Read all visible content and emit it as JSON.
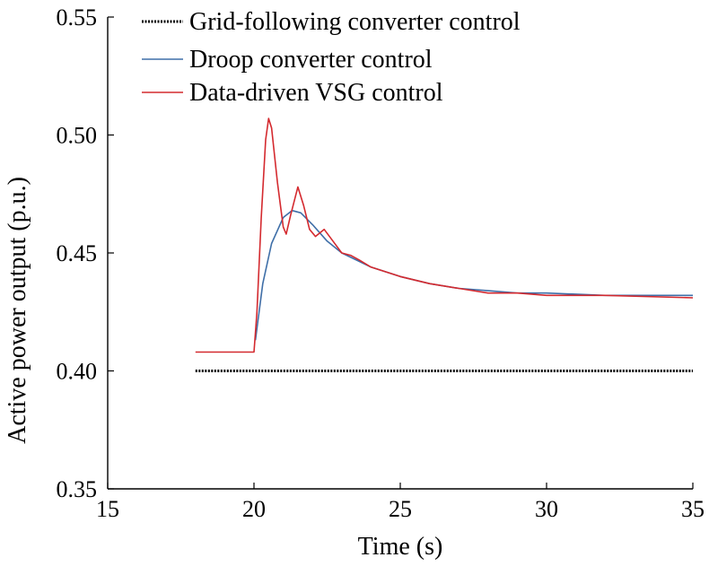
{
  "chart_data": {
    "type": "line",
    "title": "",
    "xlabel": "Time (s)",
    "ylabel": "Active power output (p.u.)",
    "xlim": [
      15,
      35
    ],
    "ylim": [
      0.35,
      0.55
    ],
    "xticks": [
      "15",
      "20",
      "25",
      "30",
      "35"
    ],
    "yticks": [
      "0.35",
      "0.40",
      "0.45",
      "0.50",
      "0.55"
    ],
    "xtick_values": [
      15,
      20,
      25,
      30,
      35
    ],
    "ytick_values": [
      0.35,
      0.4,
      0.45,
      0.5,
      0.55
    ],
    "grid": false,
    "legend_position": "top-right",
    "series": [
      {
        "name": "Grid-following converter control",
        "color": "#000000",
        "style": "dotted",
        "x": [
          18,
          20,
          20.01,
          35
        ],
        "y": [
          0.4,
          0.4,
          0.4,
          0.4
        ]
      },
      {
        "name": "Droop converter control",
        "color": "#3f6fa8",
        "style": "solid",
        "x": [
          20.05,
          20.3,
          20.6,
          21.0,
          21.3,
          21.6,
          22.0,
          22.5,
          23.0,
          23.5,
          24.0,
          25.0,
          26.0,
          27.0,
          28.0,
          29.0,
          30.0,
          32.0,
          35.0
        ],
        "y": [
          0.413,
          0.437,
          0.454,
          0.465,
          0.468,
          0.467,
          0.462,
          0.455,
          0.45,
          0.447,
          0.444,
          0.44,
          0.437,
          0.435,
          0.434,
          0.433,
          0.433,
          0.432,
          0.432
        ]
      },
      {
        "name": "Data-driven VSG control",
        "color": "#d42a2f",
        "style": "solid",
        "x": [
          18.0,
          20.0,
          20.1,
          20.25,
          20.4,
          20.5,
          20.6,
          20.8,
          21.0,
          21.1,
          21.25,
          21.5,
          21.7,
          21.9,
          22.1,
          22.4,
          22.7,
          23.0,
          23.3,
          23.6,
          24.0,
          24.5,
          25.0,
          26.0,
          27.0,
          28.0,
          29.0,
          30.0,
          32.0,
          35.0
        ],
        "y": [
          0.408,
          0.408,
          0.425,
          0.465,
          0.498,
          0.507,
          0.503,
          0.48,
          0.461,
          0.458,
          0.466,
          0.478,
          0.47,
          0.46,
          0.457,
          0.46,
          0.455,
          0.45,
          0.449,
          0.447,
          0.444,
          0.442,
          0.44,
          0.437,
          0.435,
          0.433,
          0.433,
          0.432,
          0.432,
          0.431
        ]
      }
    ]
  }
}
